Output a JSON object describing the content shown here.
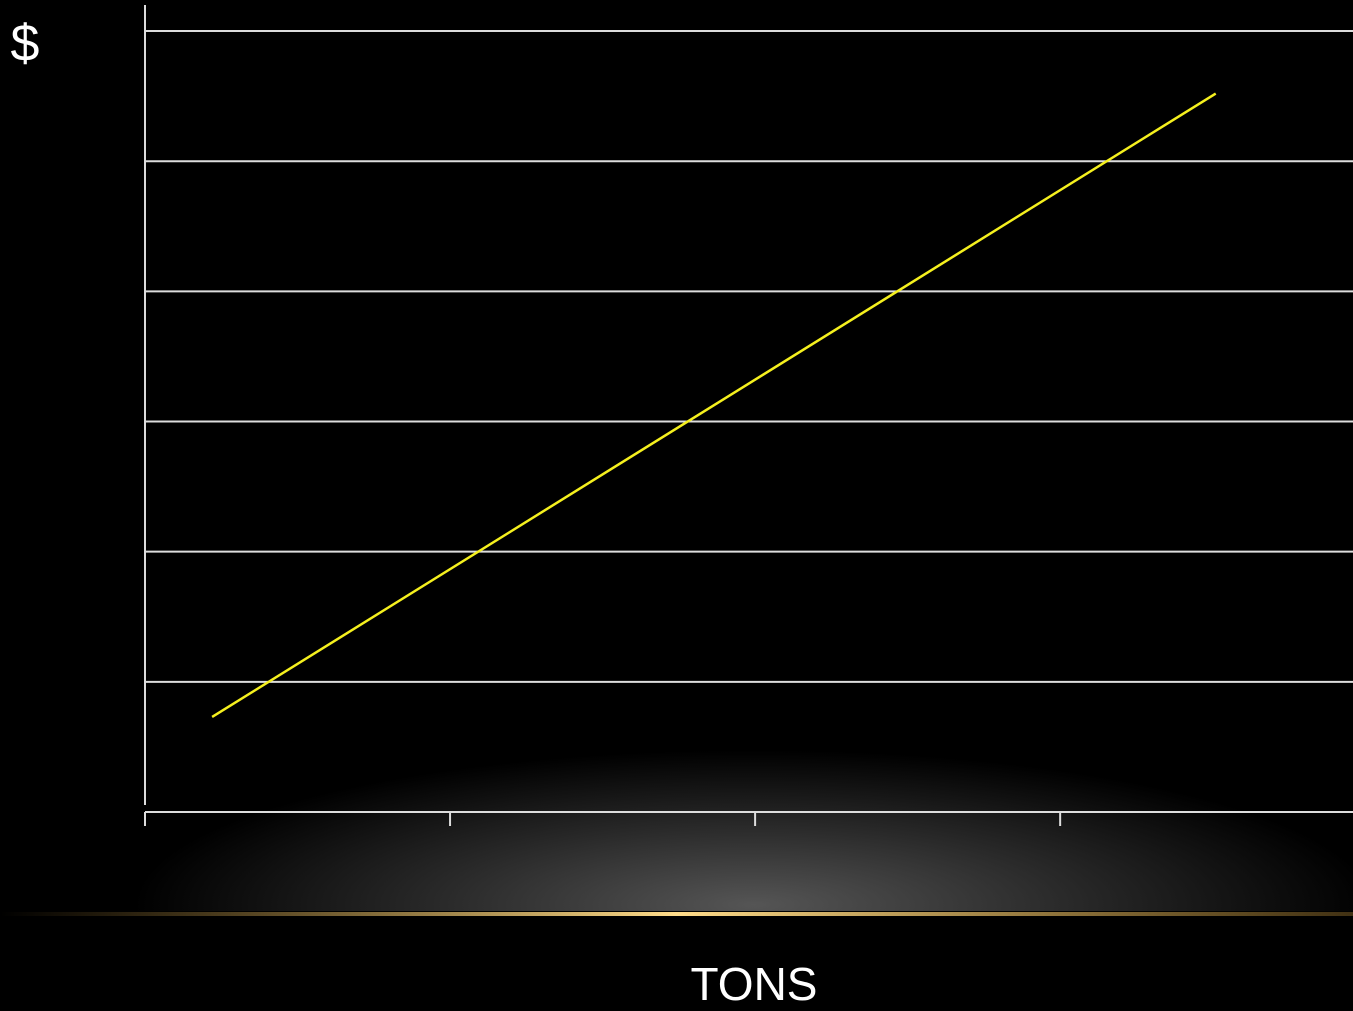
{
  "chart_data": {
    "type": "line",
    "ylabel": "$",
    "xlabel": "TONS",
    "x": [
      0.22,
      3.51
    ],
    "series": [
      {
        "color": "#f5f01e",
        "values": [
          0.73,
          5.52
        ]
      }
    ],
    "xlim": [
      0,
      3.96
    ],
    "xticks": [
      0,
      1,
      2,
      3
    ],
    "ylim": [
      0,
      6.2
    ],
    "yticks": [
      0,
      1,
      2,
      3,
      4,
      5,
      6
    ],
    "grid": true
  }
}
